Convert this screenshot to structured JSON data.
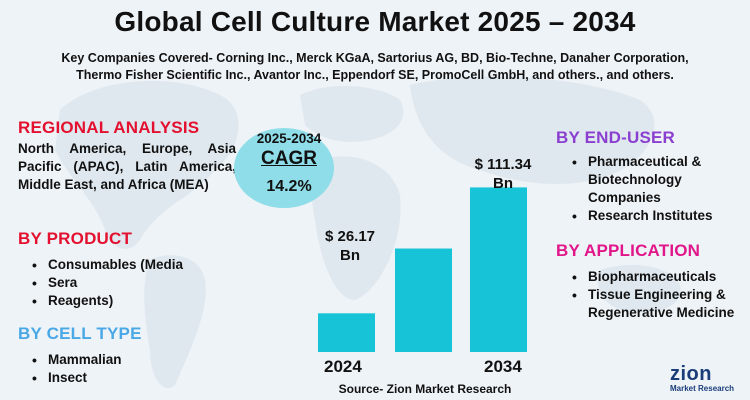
{
  "title": "Global Cell Culture Market 2025 – 2034",
  "subtitle_line1": "Key Companies Covered- Corning Inc., Merck KGaA, Sartorius AG, BD, Bio-Techne, Danaher Corporation,",
  "subtitle_line2": "Thermo Fisher Scientific Inc., Avantor Inc., Eppendorf SE, PromoCell GmbH, and others., and others.",
  "regional": {
    "heading": "REGIONAL ANALYSIS",
    "text": "North America, Europe, Asia Pacific (APAC), Latin America, Middle East, and Africa (MEA)"
  },
  "product": {
    "heading": "BY PRODUCT",
    "items": [
      "Consumables (Media",
      "Sera",
      "Reagents)"
    ]
  },
  "cell_type": {
    "heading": "BY CELL TYPE",
    "items": [
      "Mammalian",
      "Insect"
    ]
  },
  "cagr": {
    "period": "2025-2034",
    "label": "CAGR",
    "value": "14.2%"
  },
  "end_user": {
    "heading": "BY END-USER",
    "items": [
      "Pharmaceutical & Biotechnology Companies",
      "Research Institutes"
    ]
  },
  "application": {
    "heading": "BY APPLICATION",
    "items": [
      "Biopharmaceuticals",
      "Tissue Engineering & Regenerative Medicine"
    ]
  },
  "source": "Source- Zion Market Research",
  "logo": {
    "name": "zion",
    "tagline": "Market Research"
  },
  "colors": {
    "bar": "#17c3d6",
    "red_heading": "#e3112f",
    "blue_heading": "#4aa8e6",
    "purple_heading": "#8b3fd0",
    "magenta_heading": "#e0168a",
    "cagr_bubble": "#8fdde8"
  },
  "chart_data": {
    "type": "bar",
    "categories": [
      "2024",
      "",
      "2034"
    ],
    "values": [
      26.17,
      70,
      111.34
    ],
    "value_labels": [
      "$ 26.17 Bn",
      "",
      "$ 111.34 Bn"
    ],
    "title": "",
    "xlabel": "",
    "ylabel": "",
    "ylim": [
      0,
      115
    ],
    "grid": false
  }
}
